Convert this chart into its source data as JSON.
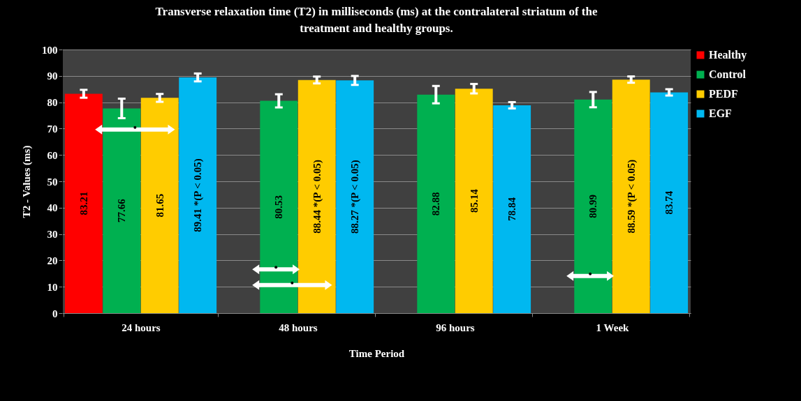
{
  "chart_data": {
    "type": "bar",
    "title": "Transverse  relaxation time (T2) in milliseconds (ms) at the contralateral striatum of the treatment and healthy groups.",
    "xlabel": "Time Period",
    "ylabel": "T2 - Values (ms)",
    "categories": [
      "24 hours",
      "48 hours",
      "96 hours",
      "1 Week"
    ],
    "series": [
      {
        "name": "Healthy",
        "color": "#ff0000",
        "values": [
          83.21,
          null,
          null,
          null
        ],
        "errors": [
          1.5,
          null,
          null,
          null
        ],
        "value_labels": [
          "83.21",
          null,
          null,
          null
        ]
      },
      {
        "name": "Control",
        "color": "#00b050",
        "values": [
          77.66,
          80.53,
          82.88,
          80.99
        ],
        "errors": [
          3.7,
          2.5,
          3.3,
          2.9
        ],
        "value_labels": [
          "77.66",
          "80.53",
          "82.88",
          "80.99"
        ]
      },
      {
        "name": "PEDF",
        "color": "#ffcc00",
        "values": [
          81.65,
          88.44,
          85.14,
          88.59
        ],
        "errors": [
          1.5,
          1.3,
          1.8,
          1.2
        ],
        "value_labels": [
          "81.65",
          "88.44 *(P < 0.05)",
          "85.14",
          "88.59 *(P < 0.05)"
        ]
      },
      {
        "name": "EGF",
        "color": "#00b8f0",
        "values": [
          89.41,
          88.27,
          78.84,
          83.74
        ],
        "errors": [
          1.5,
          1.7,
          1.2,
          1.2
        ],
        "value_labels": [
          "89.41 *(P < 0.05)",
          "88.27 *(P < 0.05)",
          "78.84",
          "83.74"
        ]
      }
    ],
    "ylim": [
      0,
      100
    ],
    "yticks": [
      0,
      10,
      20,
      30,
      40,
      50,
      60,
      70,
      80,
      90,
      100
    ],
    "grid": "y",
    "legend": "right"
  }
}
